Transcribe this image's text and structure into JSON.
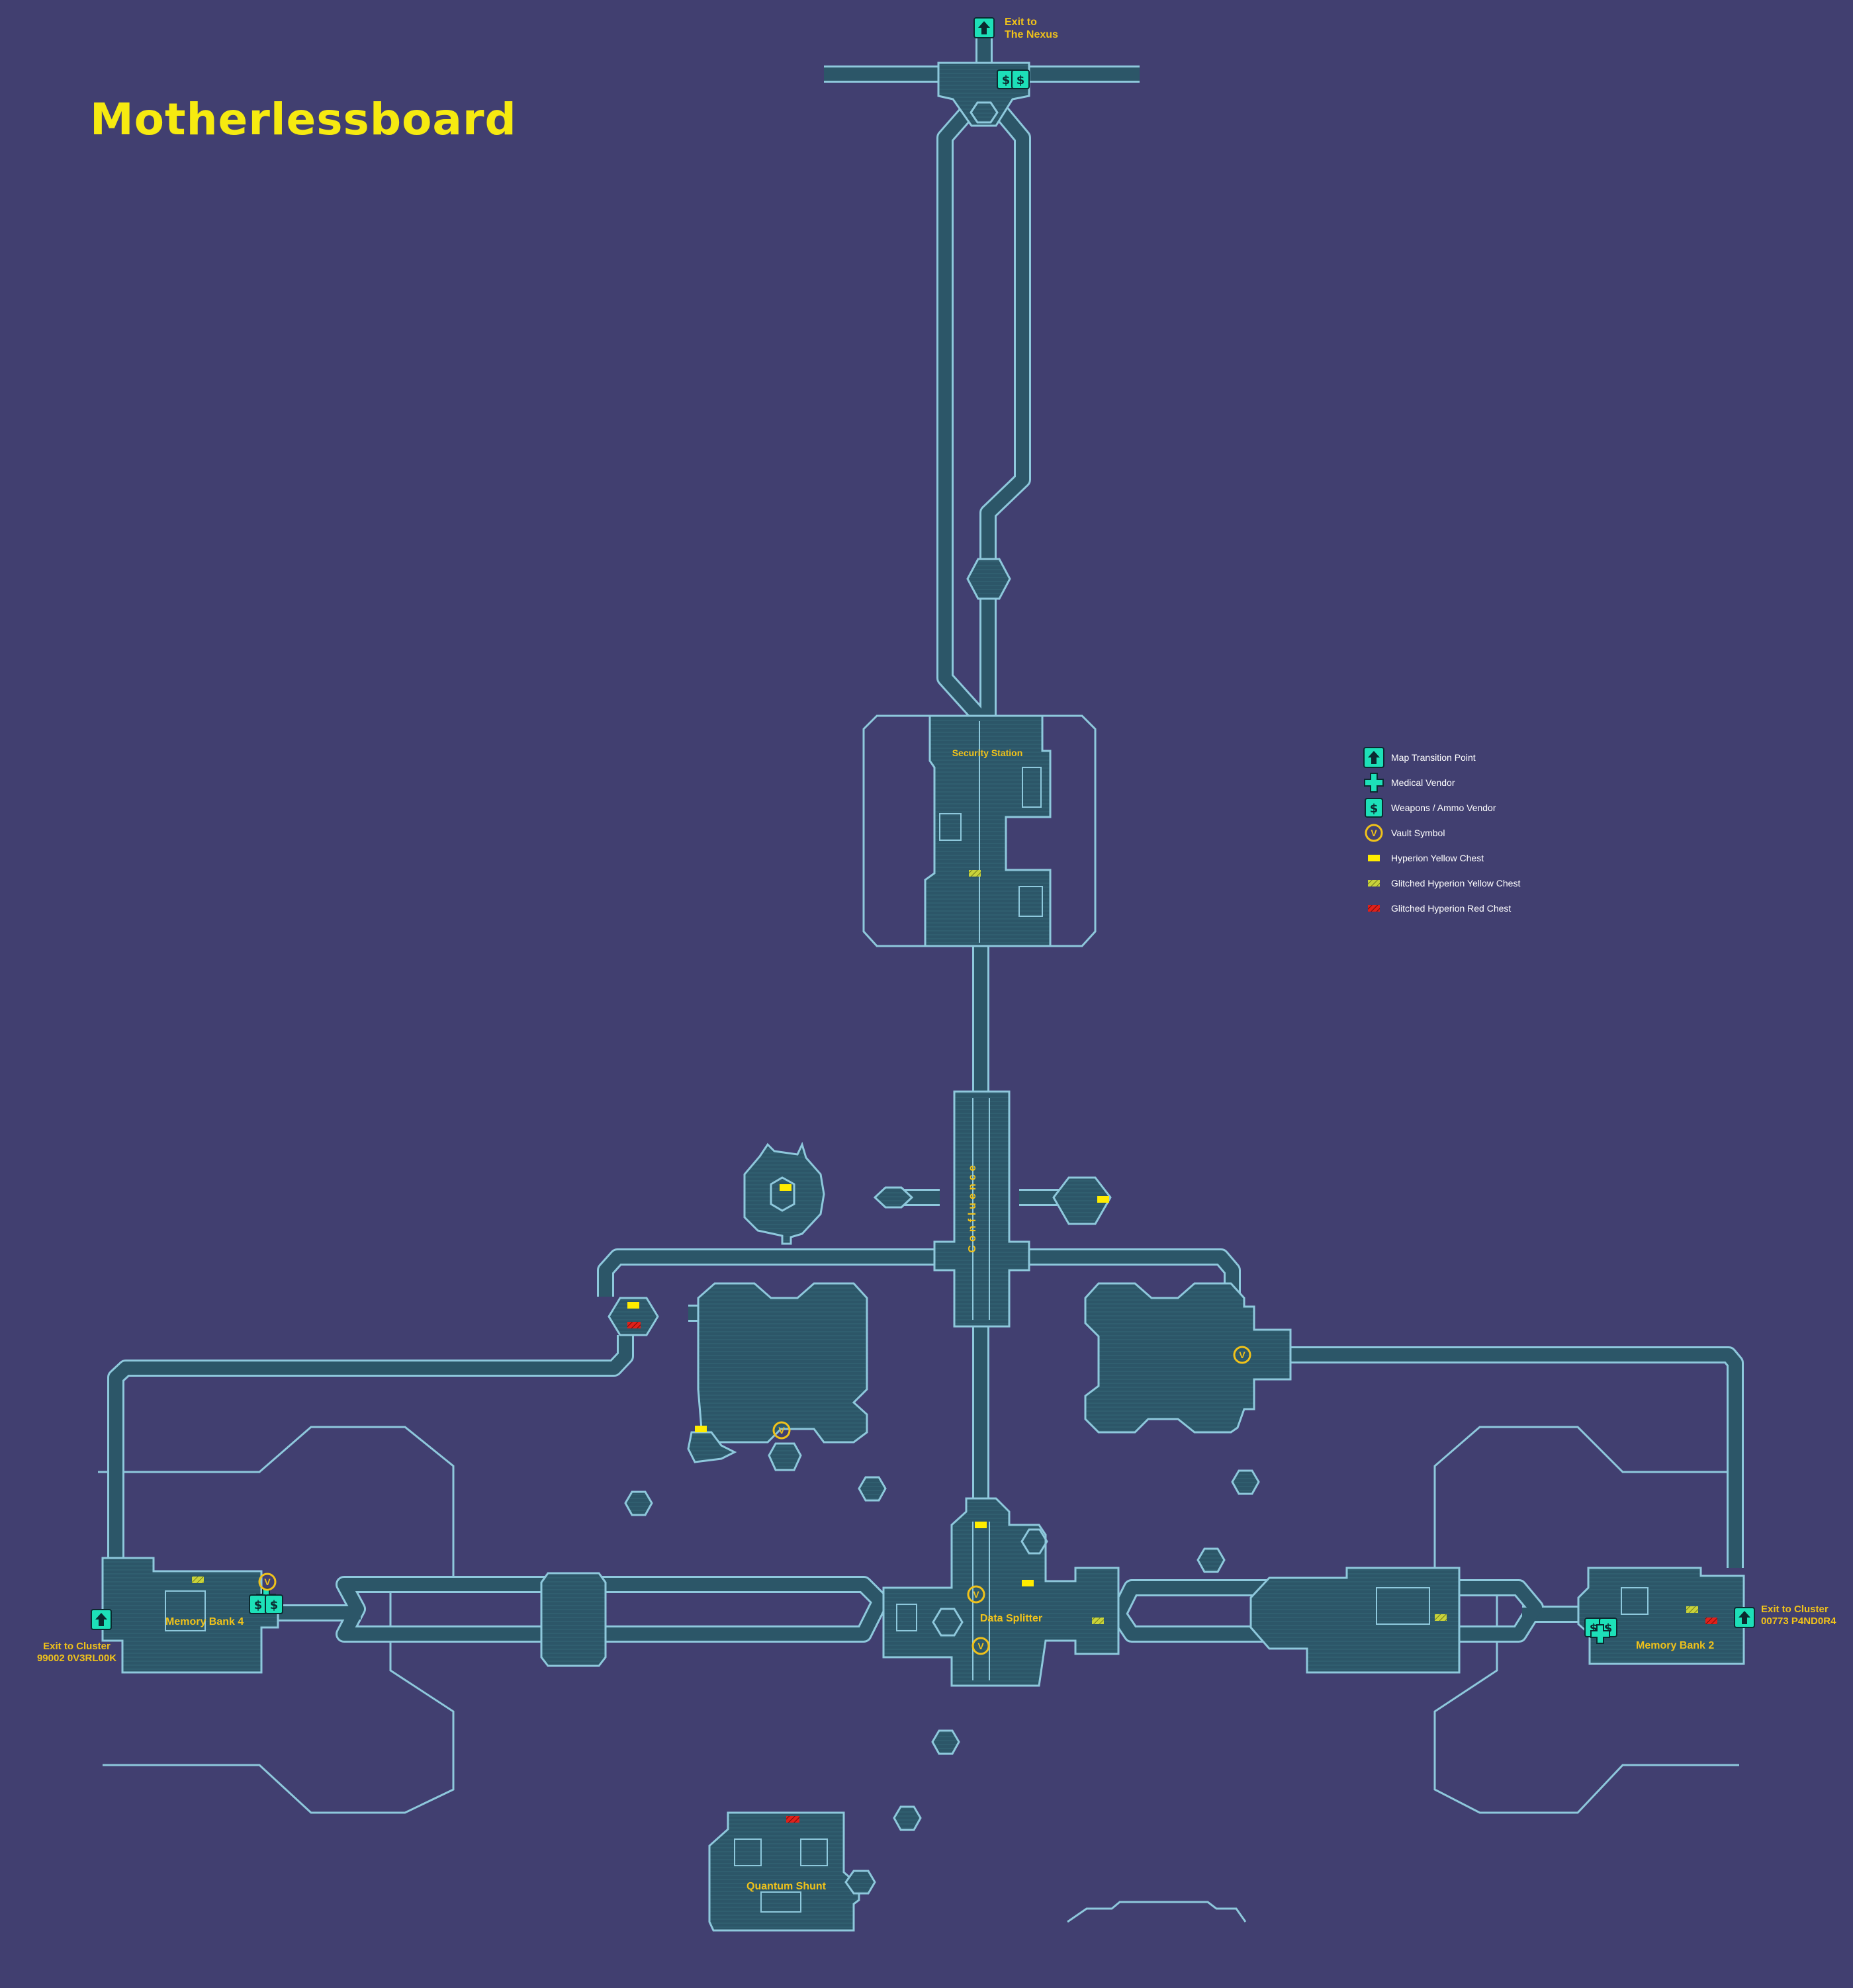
{
  "map": {
    "title": "Motherlessboard",
    "colors": {
      "background": "#413f70",
      "room_fill": "#2c5668",
      "outline": "#8ec8dc",
      "label": "#f0c21a",
      "title": "#f6ea10",
      "icon": "#1de0b8",
      "yellow_chest": "#ffec00",
      "glitched_yellow": "#c8d23a",
      "glitched_red": "#e0201a"
    },
    "labels": {
      "exit_nexus": "Exit to\nThe Nexus",
      "security_station": "Security Station",
      "confluence": "Confluence",
      "memory_bank_4": "Memory Bank 4",
      "memory_bank_2": "Memory Bank 2",
      "data_splitter": "Data Splitter",
      "quantum_shunt": "Quantum Shunt",
      "exit_left": "Exit to Cluster\n99002 0V3RL00K",
      "exit_right": "Exit to Cluster\n00773 P4ND0R4"
    }
  },
  "legend": [
    {
      "icon": "map-transition-icon",
      "label": "Map Transition Point"
    },
    {
      "icon": "medical-vendor-icon",
      "label": "Medical Vendor"
    },
    {
      "icon": "weapons-vendor-icon",
      "label": "Weapons / Ammo Vendor"
    },
    {
      "icon": "vault-symbol-icon",
      "label": "Vault Symbol"
    },
    {
      "icon": "yellow-chest-icon",
      "label": "Hyperion Yellow Chest"
    },
    {
      "icon": "glitched-yellow-chest-icon",
      "label": "Glitched Hyperion Yellow Chest"
    },
    {
      "icon": "glitched-red-chest-icon",
      "label": "Glitched Hyperion Red Chest"
    }
  ]
}
